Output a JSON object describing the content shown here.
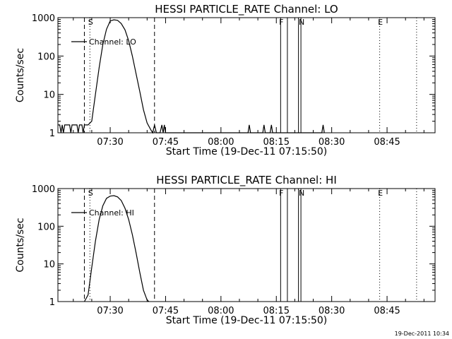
{
  "chart_data": [
    {
      "type": "line",
      "title": "HESSI PARTICLE_RATE Channel: LO",
      "xlabel": "Start Time (19-Dec-11 07:15:50)",
      "ylabel": "Counts/sec",
      "yscale": "log",
      "ylim": [
        1,
        1000
      ],
      "xlim": [
        "07:15:50",
        "08:58:00"
      ],
      "x_ticks": [
        "07:30",
        "07:45",
        "08:00",
        "08:15",
        "08:30",
        "08:45"
      ],
      "y_ticks": [
        "1",
        "10",
        "100",
        "1000"
      ],
      "grid": false,
      "legend": {
        "position": "top-left",
        "entries": [
          "Channel: LO"
        ]
      },
      "series": [
        {
          "name": "Channel: LO",
          "x": [
            "07:15:50",
            "07:16:20",
            "07:16:40",
            "07:17:00",
            "07:17:20",
            "07:17:40",
            "07:18:00",
            "07:18:30",
            "07:19:00",
            "07:19:20",
            "07:19:40",
            "07:20:00",
            "07:20:30",
            "07:21:00",
            "07:21:20",
            "07:21:40",
            "07:22:00",
            "07:22:20",
            "07:22:40",
            "07:23:00",
            "07:23:30",
            "07:24:00",
            "07:25:00",
            "07:26:00",
            "07:27:00",
            "07:28:00",
            "07:29:00",
            "07:30:00",
            "07:31:00",
            "07:32:00",
            "07:33:00",
            "07:34:00",
            "07:35:00",
            "07:36:00",
            "07:37:00",
            "07:38:00",
            "07:39:00",
            "07:40:00",
            "07:41:00",
            "07:41:30",
            "07:42:00",
            "07:42:30",
            "07:43:00",
            "07:43:30",
            "07:44:00",
            "07:44:20",
            "07:44:40",
            "07:45:00",
            "08:07:20",
            "08:07:40",
            "08:08:00",
            "08:11:20",
            "08:11:40",
            "08:12:00",
            "08:13:20",
            "08:13:40",
            "08:14:00",
            "08:27:20",
            "08:27:40",
            "08:28:00"
          ],
          "values": [
            1.6,
            1.6,
            1,
            1.6,
            1,
            1.6,
            1.6,
            1.6,
            1.6,
            1,
            1.6,
            1.6,
            1.6,
            1.6,
            1,
            1.6,
            1.6,
            1.6,
            1,
            1.6,
            1.6,
            1.6,
            2,
            10,
            50,
            200,
            500,
            820,
            880,
            850,
            700,
            480,
            250,
            100,
            35,
            12,
            4,
            1.8,
            1.2,
            1,
            1.6,
            1,
            1,
            1,
            1.6,
            1,
            1.6,
            1,
            1,
            1.6,
            1,
            1,
            1.6,
            1,
            1,
            1.6,
            1,
            1,
            1.6,
            1
          ]
        }
      ],
      "markers": [
        {
          "label": "S",
          "time": "07:24:30",
          "style": "dotted"
        },
        {
          "label": "",
          "time": "07:23:00",
          "style": "dashed"
        },
        {
          "label": "",
          "time": "07:42:00",
          "style": "dashed"
        },
        {
          "label": "F",
          "time": "08:16:10",
          "style": "solid"
        },
        {
          "label": "",
          "time": "08:18:00",
          "style": "solid"
        },
        {
          "label": "",
          "time": "08:21:00",
          "style": "solid"
        },
        {
          "label": "N",
          "time": "08:21:40",
          "style": "solid"
        },
        {
          "label": "E",
          "time": "08:43:00",
          "style": "dotted"
        },
        {
          "label": "",
          "time": "08:53:00",
          "style": "dotted"
        }
      ]
    },
    {
      "type": "line",
      "title": "HESSI PARTICLE_RATE Channel: HI",
      "xlabel": "Start Time (19-Dec-11 07:15:50)",
      "ylabel": "Counts/sec",
      "yscale": "log",
      "ylim": [
        1,
        1000
      ],
      "xlim": [
        "07:15:50",
        "08:58:00"
      ],
      "x_ticks": [
        "07:30",
        "07:45",
        "08:00",
        "08:15",
        "08:30",
        "08:45"
      ],
      "y_ticks": [
        "1",
        "10",
        "100",
        "1000"
      ],
      "grid": false,
      "legend": {
        "position": "top-left",
        "entries": [
          "Channel: HI"
        ]
      },
      "series": [
        {
          "name": "Channel: HI",
          "x": [
            "07:23:00",
            "07:24:00",
            "07:25:00",
            "07:26:00",
            "07:27:00",
            "07:28:00",
            "07:29:00",
            "07:30:00",
            "07:31:00",
            "07:32:00",
            "07:33:00",
            "07:34:00",
            "07:35:00",
            "07:36:00",
            "07:37:00",
            "07:38:00",
            "07:39:00",
            "07:40:00",
            "07:40:30"
          ],
          "values": [
            1,
            1.5,
            8,
            40,
            150,
            350,
            550,
            630,
            650,
            600,
            480,
            300,
            150,
            60,
            20,
            6,
            2,
            1.1,
            1
          ]
        }
      ],
      "markers": [
        {
          "label": "S",
          "time": "07:24:30",
          "style": "dotted"
        },
        {
          "label": "",
          "time": "07:23:00",
          "style": "dashed"
        },
        {
          "label": "",
          "time": "07:42:00",
          "style": "dashed"
        },
        {
          "label": "F",
          "time": "08:16:10",
          "style": "solid"
        },
        {
          "label": "",
          "time": "08:18:00",
          "style": "solid"
        },
        {
          "label": "",
          "time": "08:21:00",
          "style": "solid"
        },
        {
          "label": "N",
          "time": "08:21:40",
          "style": "solid"
        },
        {
          "label": "E",
          "time": "08:43:00",
          "style": "dotted"
        },
        {
          "label": "",
          "time": "08:53:00",
          "style": "dotted"
        }
      ]
    }
  ],
  "footer": {
    "timestamp": "19-Dec-2011 10:34"
  }
}
